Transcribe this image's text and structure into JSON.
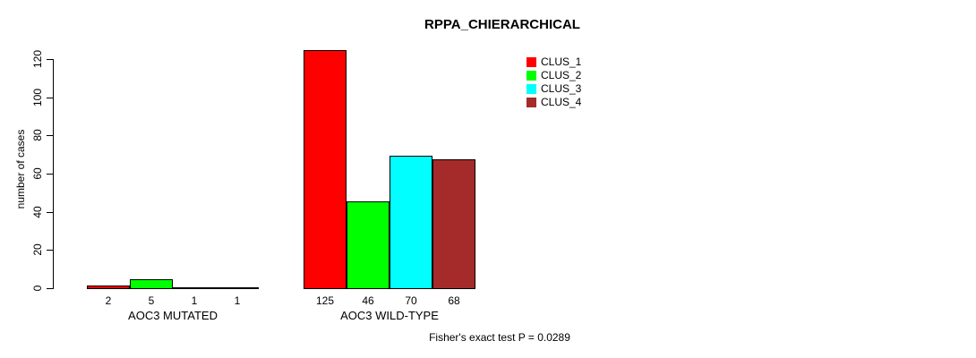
{
  "title": "RPPA_CHIERARCHICAL",
  "footer": "Fisher's exact test P = 0.0289",
  "chart_data": {
    "type": "bar",
    "title": "RPPA_CHIERARCHICAL",
    "xlabel": "",
    "ylabel": "number of cases",
    "ylim": [
      0,
      125
    ],
    "yticks": [
      0,
      20,
      40,
      60,
      80,
      100,
      120
    ],
    "grid": false,
    "legend_position": "top-right-inside",
    "categories": [
      "AOC3 MUTATED",
      "AOC3 WILD-TYPE"
    ],
    "series": [
      {
        "name": "CLUS_1",
        "color": "#FF0000",
        "values": [
          2,
          125
        ]
      },
      {
        "name": "CLUS_2",
        "color": "#00FF00",
        "values": [
          5,
          46
        ]
      },
      {
        "name": "CLUS_3",
        "color": "#00FFFF",
        "values": [
          1,
          70
        ]
      },
      {
        "name": "CLUS_4",
        "color": "#A52A2A",
        "values": [
          1,
          68
        ]
      }
    ],
    "bar_value_labels": [
      [
        2,
        5,
        1,
        1
      ],
      [
        125,
        46,
        70,
        68
      ]
    ],
    "annotation": "Fisher's exact test P = 0.0289"
  }
}
